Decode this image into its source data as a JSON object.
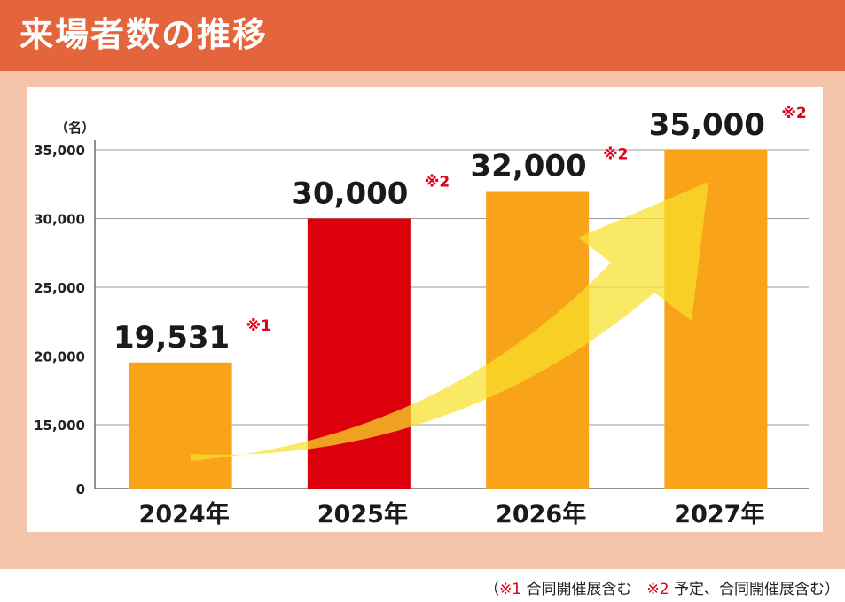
{
  "header": {
    "title": "来場者数の推移"
  },
  "footnote": {
    "open": "（",
    "mark1": "※1",
    "text1": " 合同開催展含む　",
    "mark2": "※2",
    "text2": " 予定、合同開催展含む）"
  },
  "colors": {
    "header_bg": "#e4643c",
    "frame_bg": "#f4c4a8",
    "bar_default": "#f9a31b",
    "bar_highlight": "#dc000c",
    "note_mark": "#e0001a",
    "arrow": "#f7e12a"
  },
  "chart_data": {
    "type": "bar",
    "unit_label": "（名）",
    "categories": [
      "2024年",
      "2025年",
      "2026年",
      "2027年"
    ],
    "values": [
      19531,
      30000,
      32000,
      35000
    ],
    "value_labels": [
      "19,531",
      "30,000",
      "32,000",
      "35,000"
    ],
    "value_notes": [
      "※1",
      "※2",
      "※2",
      "※2"
    ],
    "highlight_index": 1,
    "yticks": [
      0,
      15000,
      20000,
      25000,
      30000,
      35000
    ],
    "ytick_labels": [
      "0",
      "15,000",
      "20,000",
      "25,000",
      "30,000",
      "35,000"
    ],
    "grid": true,
    "trend_arrow": "up-right"
  }
}
